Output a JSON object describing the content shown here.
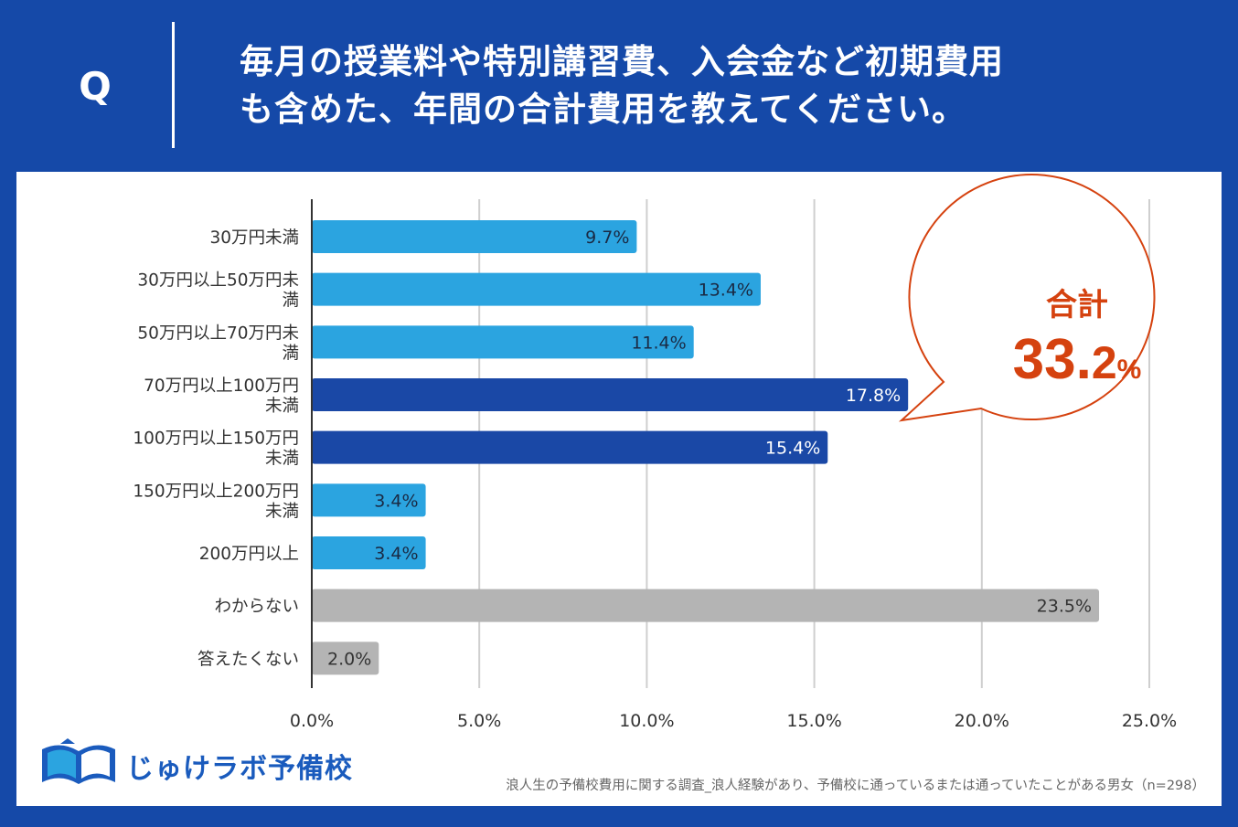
{
  "header": {
    "q_mark": "Q",
    "question_line1": "毎月の授業料や特別講習費、入会金など初期費用",
    "question_line2": "も含めた、年間の合計費用を教えてください。"
  },
  "chart_data": {
    "type": "bar",
    "orientation": "horizontal",
    "categories": [
      "30万円未満",
      "30万円以上50万円未満",
      "50万円以上70万円未満",
      "70万円以上100万円未満",
      "100万円以上150万円未満",
      "150万円以上200万円未満",
      "200万円以上",
      "わからない",
      "答えたくない"
    ],
    "category_lines": [
      [
        "30万円未満"
      ],
      [
        "30万円以上50万円未",
        "満"
      ],
      [
        "50万円以上70万円未",
        "満"
      ],
      [
        "70万円以上100万円",
        "未満"
      ],
      [
        "100万円以上150万円",
        "未満"
      ],
      [
        "150万円以上200万円",
        "未満"
      ],
      [
        "200万円以上"
      ],
      [
        "わからない"
      ],
      [
        "答えたくない"
      ]
    ],
    "values": [
      9.7,
      13.4,
      11.4,
      17.8,
      15.4,
      3.4,
      3.4,
      23.5,
      2.0
    ],
    "value_labels": [
      "9.7%",
      "13.4%",
      "11.4%",
      "17.8%",
      "15.4%",
      "3.4%",
      "3.4%",
      "23.5%",
      "2.0%"
    ],
    "bar_colors": [
      "#2ba4e0",
      "#2ba4e0",
      "#2ba4e0",
      "#1a48a6",
      "#1a48a6",
      "#2ba4e0",
      "#2ba4e0",
      "#b4b4b4",
      "#b4b4b4"
    ],
    "label_colors": [
      "#1a2a44",
      "#1a2a44",
      "#1a2a44",
      "#ffffff",
      "#ffffff",
      "#1a2a44",
      "#1a2a44",
      "#333333",
      "#333333"
    ],
    "xlim": [
      0,
      25
    ],
    "xticks": [
      "0.0%",
      "5.0%",
      "10.0%",
      "15.0%",
      "20.0%",
      "25.0%"
    ],
    "grid": true
  },
  "callout": {
    "label": "合計",
    "value_int": "33.",
    "value_dec": "2",
    "value_unit": "%"
  },
  "logo": {
    "text": "じゅけラボ予備校"
  },
  "footnote": "浪人生の予備校費用に関する調査_浪人経験があり、予備校に通っているまたは通っていたことがある男女（n=298）",
  "colors": {
    "background": "#1549a8",
    "accent": "#d5420f",
    "light_bar": "#2ba4e0",
    "dark_bar": "#1a48a6",
    "grey_bar": "#b4b4b4"
  }
}
